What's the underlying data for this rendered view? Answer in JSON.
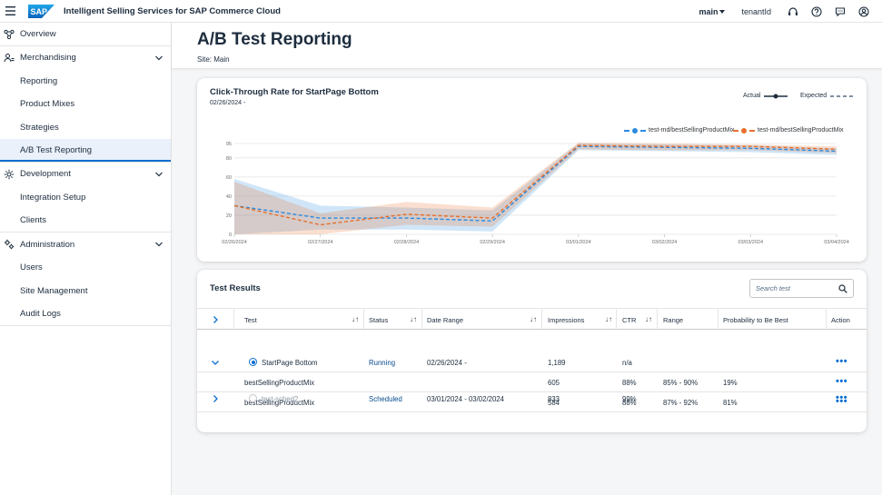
{
  "shell": {
    "logo_text": "SAP",
    "title": "Intelligent Selling Services for SAP Commerce Cloud",
    "site": "main",
    "tenant": "tenantId"
  },
  "sidebar": {
    "overview": "Overview",
    "merchandising": "Merchandising",
    "merch_items": [
      "Reporting",
      "Product Mixes",
      "Strategies",
      "A/B Test Reporting"
    ],
    "development": "Development",
    "dev_items": [
      "Integration Setup",
      "Clients"
    ],
    "administration": "Administration",
    "admin_items": [
      "Users",
      "Site Management",
      "Audit Logs"
    ]
  },
  "page": {
    "title": "A/B Test Reporting",
    "site_label": "Site: Main"
  },
  "chart": {
    "title": "Click-Through Rate for StartPage Bottom",
    "date": "02/26/2024 -",
    "legend_actual": "Actual",
    "legend_expected": "Expected"
  },
  "chart_data": {
    "type": "line",
    "title": "Click-Through Rate for StartPage Bottom",
    "x": [
      "02/26/2024",
      "02/27/2024",
      "02/28/2024",
      "02/29/2024",
      "03/01/2024",
      "03/02/2024",
      "03/03/2024",
      "03/04/2024"
    ],
    "yticks": [
      0,
      20,
      40,
      60,
      80,
      95
    ],
    "ylim": [
      0,
      95
    ],
    "series": [
      {
        "name": "test-md/bestSellingProductMix",
        "color": "#2a8be0",
        "values": [
          30,
          17,
          17,
          14,
          92,
          91,
          90,
          87
        ],
        "band_low": [
          0,
          5,
          5,
          3,
          88,
          87,
          86,
          83
        ],
        "band_high": [
          58,
          30,
          28,
          25,
          95,
          94,
          93,
          90
        ]
      },
      {
        "name": "test-md/bestSellingProductMix",
        "color": "#e76f2b",
        "values": [
          30,
          10,
          21,
          17,
          93,
          92,
          92,
          89
        ],
        "band_low": [
          0,
          0,
          10,
          8,
          89,
          88,
          88,
          85
        ],
        "band_high": [
          55,
          22,
          34,
          28,
          96,
          95,
          94,
          92
        ]
      }
    ]
  },
  "results": {
    "title": "Test Results",
    "search_placeholder": "Search test",
    "columns": [
      "Test",
      "Status",
      "Date Range",
      "Impressions",
      "CTR",
      "Range",
      "Probability to Be Best",
      "Action"
    ],
    "rows": [
      {
        "test": "StartPage Bottom",
        "status": "Running",
        "date_range": "02/26/2024 -",
        "impressions": "1,189",
        "ctr": "n/a",
        "range": "",
        "prob": ""
      },
      {
        "test": "bestSellingProductMix",
        "status": "",
        "date_range": "",
        "impressions": "605",
        "ctr": "88%",
        "range": "85% - 90%",
        "prob": "19%"
      },
      {
        "test": "bestSellingProductMix",
        "status": "",
        "date_range": "",
        "impressions": "584",
        "ctr": "88%",
        "range": "87% - 92%",
        "prob": "81%"
      },
      {
        "test": "test-sched2",
        "status": "Scheduled",
        "date_range": "03/01/2024 - 03/02/2024",
        "impressions": "833",
        "ctr": "99%",
        "range": "",
        "prob": ""
      }
    ]
  }
}
